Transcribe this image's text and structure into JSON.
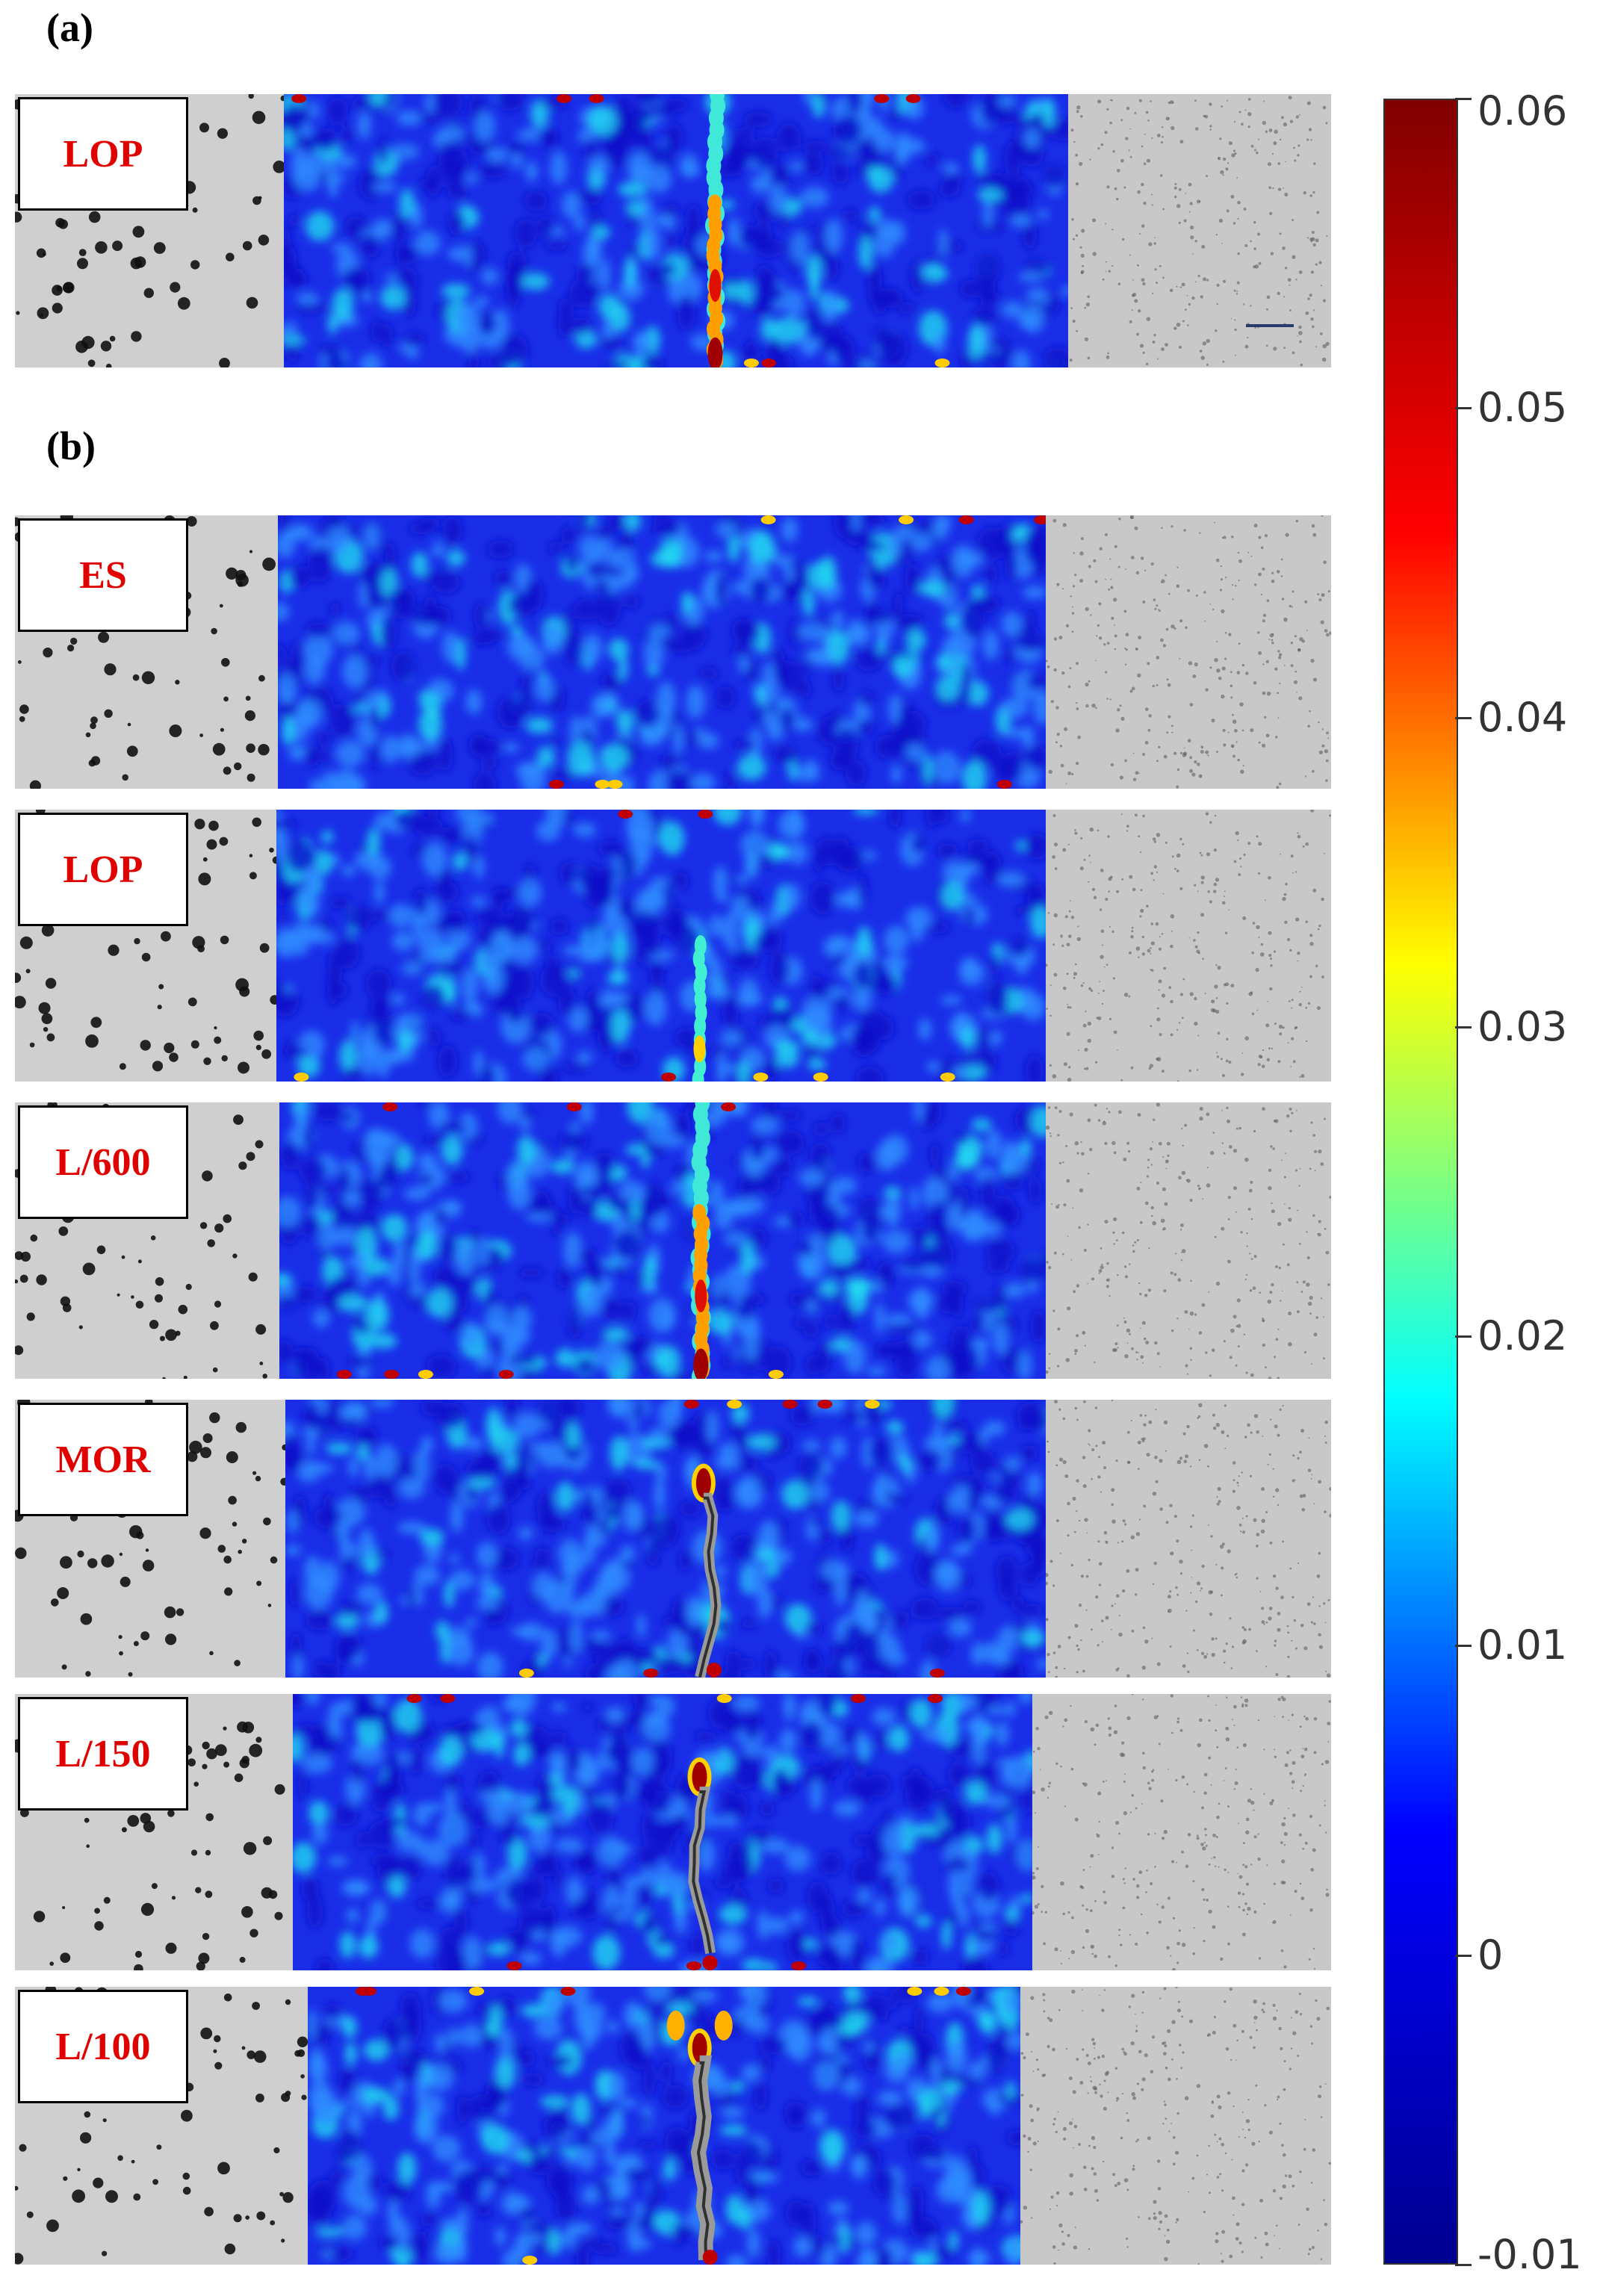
{
  "panels": [
    {
      "letter": "(a)",
      "specimens": [
        {
          "label": "LOP",
          "crack": "small"
        }
      ]
    },
    {
      "letter": "(b)",
      "specimens": [
        {
          "label": "ES",
          "crack": "none"
        },
        {
          "label": "LOP",
          "crack": "faint"
        },
        {
          "label": "L/600",
          "crack": "small"
        },
        {
          "label": "MOR",
          "crack": "open"
        },
        {
          "label": "L/150",
          "crack": "open"
        },
        {
          "label": "L/100",
          "crack": "wide"
        }
      ]
    }
  ],
  "colorbar": {
    "min": -0.01,
    "max": 0.06,
    "tick_labels": [
      "0.06",
      "0.05",
      "0.04",
      "0.03",
      "0.02",
      "0.01",
      "0",
      "-0.01"
    ],
    "colormap": [
      "#00008f",
      "#0000ff",
      "#00ffff",
      "#ffff00",
      "#ff0000",
      "#800000"
    ]
  }
}
